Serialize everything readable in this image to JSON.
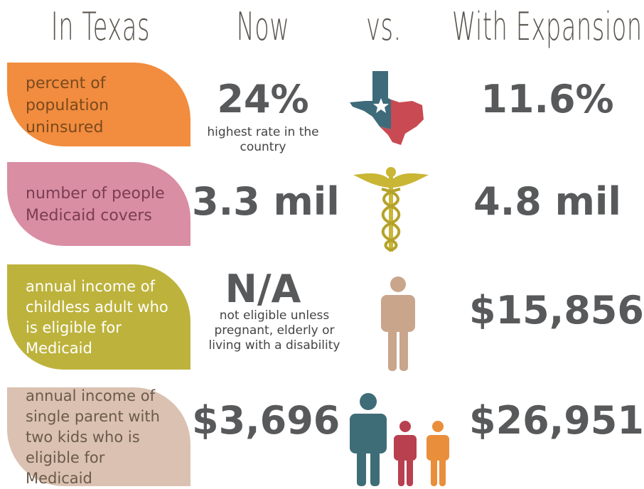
{
  "header": [
    "In Texas",
    "Now",
    "vs.",
    "With Expansion"
  ],
  "rows": [
    {
      "label": "percent of population uninsured",
      "now": "24%",
      "note": "highest rate in the country",
      "expansion": "11.6%"
    },
    {
      "label": "number of people Medicaid covers",
      "now": "3.3 mil",
      "expansion": "4.8 mil"
    },
    {
      "label": "annual income of childless adult who is eligible for Medicaid",
      "now": "N/A",
      "note": "not eligible unless pregnant, elderly or living with a disability",
      "expansion": "$15,856"
    },
    {
      "label": "annual income of single parent with  two kids who is eligible for Medicaid",
      "now": "$3,696",
      "expansion": "$26,951"
    }
  ]
}
